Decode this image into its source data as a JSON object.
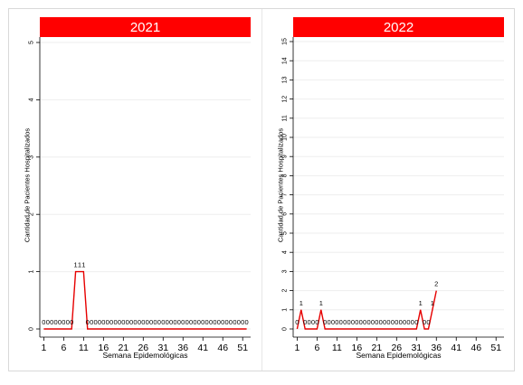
{
  "chart_data": [
    {
      "type": "line",
      "title": "2021",
      "xlabel": "Semana Epidemológicas",
      "ylabel": "Cantidad de Pacientes Hospitalizados",
      "xlim": [
        0,
        53
      ],
      "ylim": [
        0,
        5
      ],
      "x_ticks": [
        "1",
        "6",
        "11",
        "16",
        "21",
        "26",
        "31",
        "36",
        "41",
        "46",
        "51"
      ],
      "y_ticks": [
        "0",
        "1",
        "2",
        "3",
        "4",
        "5"
      ],
      "grid": true,
      "color": "#e60000",
      "series": [
        {
          "x": [
            1,
            2,
            3,
            4,
            5,
            6,
            7,
            8,
            9,
            10,
            11,
            12,
            13,
            14,
            15,
            16,
            17,
            18,
            19,
            20,
            21,
            22,
            23,
            24,
            25,
            26,
            27,
            28,
            29,
            30,
            31,
            32,
            33,
            34,
            35,
            36,
            37,
            38,
            39,
            40,
            41,
            42,
            43,
            44,
            45,
            46,
            47,
            48,
            49,
            50,
            51,
            52
          ],
          "values": [
            0,
            0,
            0,
            0,
            0,
            0,
            0,
            0,
            1,
            1,
            1,
            0,
            0,
            0,
            0,
            0,
            0,
            0,
            0,
            0,
            0,
            0,
            0,
            0,
            0,
            0,
            0,
            0,
            0,
            0,
            0,
            0,
            0,
            0,
            0,
            0,
            0,
            0,
            0,
            0,
            0,
            0,
            0,
            0,
            0,
            0,
            0,
            0,
            0,
            0,
            0,
            0
          ]
        }
      ]
    },
    {
      "type": "line",
      "title": "2022",
      "xlabel": "Semana Epidemológicas",
      "ylabel": "Cantidad de Pacientes Hospitalizados",
      "xlim": [
        0,
        53
      ],
      "ylim": [
        0,
        15
      ],
      "x_ticks": [
        "1",
        "6",
        "11",
        "16",
        "21",
        "26",
        "31",
        "36",
        "41",
        "46",
        "51"
      ],
      "y_ticks": [
        "0",
        "1",
        "2",
        "3",
        "4",
        "5",
        "6",
        "7",
        "8",
        "9",
        "10",
        "11",
        "12",
        "13",
        "14",
        "15"
      ],
      "grid": true,
      "color": "#e60000",
      "series": [
        {
          "x": [
            1,
            2,
            3,
            4,
            5,
            6,
            7,
            8,
            9,
            10,
            11,
            12,
            13,
            14,
            15,
            16,
            17,
            18,
            19,
            20,
            21,
            22,
            23,
            24,
            25,
            26,
            27,
            28,
            29,
            30,
            31,
            32,
            33,
            34,
            35,
            36
          ],
          "values": [
            0,
            1,
            0,
            0,
            0,
            0,
            1,
            0,
            0,
            0,
            0,
            0,
            0,
            0,
            0,
            0,
            0,
            0,
            0,
            0,
            0,
            0,
            0,
            0,
            0,
            0,
            0,
            0,
            0,
            0,
            0,
            1,
            0,
            0,
            1,
            2
          ]
        }
      ]
    }
  ]
}
